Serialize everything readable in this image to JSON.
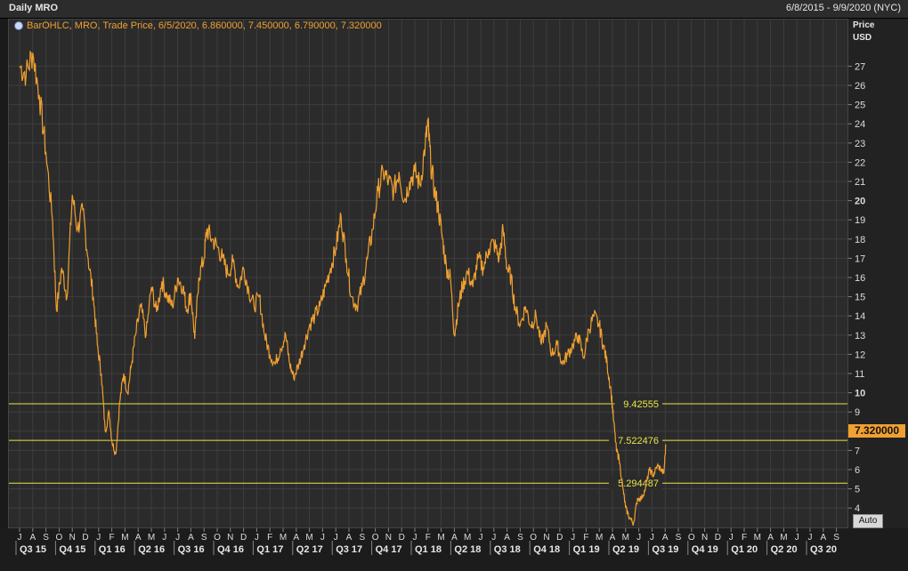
{
  "header": {
    "title": "Daily MRO",
    "range": "6/8/2015 - 9/9/2020 (NYC)"
  },
  "legend": {
    "text": "BarOHLC, MRO, Trade Price, 6/5/2020, 6.860000, 7.450000, 6.790000, 7.320000"
  },
  "axis": {
    "title_line1": "Price",
    "title_line2": "USD",
    "auto_label": "Auto"
  },
  "last_price": "7.320000",
  "colors": {
    "series": "#f0a030",
    "hline": "#e6e64a",
    "grid": "#3e3e3e",
    "background": "#2b2b2b"
  },
  "chart_data": {
    "type": "line",
    "title": "Daily MRO",
    "ylabel": "Price USD",
    "ylim": [
      3,
      28
    ],
    "y_ticks": [
      4,
      5,
      6,
      7,
      8,
      9,
      10,
      11,
      12,
      13,
      14,
      15,
      16,
      17,
      18,
      19,
      20,
      21,
      22,
      23,
      24,
      25,
      26,
      27
    ],
    "bold_ticks": [
      10,
      20
    ],
    "month_labels": [
      "J",
      "A",
      "S",
      "O",
      "N",
      "D",
      "J",
      "F",
      "M",
      "A",
      "M",
      "J",
      "J",
      "A",
      "S",
      "O",
      "N",
      "D",
      "J",
      "F",
      "M",
      "A",
      "M",
      "J",
      "J",
      "A",
      "S",
      "O",
      "N",
      "D",
      "J",
      "F",
      "M",
      "A",
      "M",
      "J",
      "J",
      "A",
      "S",
      "O",
      "N",
      "D",
      "J",
      "F",
      "M",
      "A",
      "M",
      "J",
      "J",
      "A",
      "S",
      "O",
      "N",
      "D",
      "J",
      "F",
      "M",
      "A",
      "M",
      "J",
      "J",
      "A",
      "S"
    ],
    "quarter_labels": [
      "Q3 15",
      "Q4 15",
      "Q1 16",
      "Q2 16",
      "Q3 16",
      "Q4 16",
      "Q1 17",
      "Q2 17",
      "Q3 17",
      "Q4 17",
      "Q1 18",
      "Q2 18",
      "Q3 18",
      "Q4 18",
      "Q1 19",
      "Q2 19",
      "Q3 19",
      "Q4 19",
      "Q1 20",
      "Q2 20",
      "Q3 20"
    ],
    "horizontal_lines": [
      {
        "label": "9.42555",
        "value": 9.42555
      },
      {
        "label": "7.522476",
        "value": 7.522476
      },
      {
        "label": "5.294487",
        "value": 5.294487
      }
    ],
    "series": [
      {
        "points": [
          [
            0,
            27
          ],
          [
            0.5,
            26.6
          ],
          [
            1,
            27.7
          ],
          [
            1.5,
            25.5
          ],
          [
            2,
            22.5
          ],
          [
            2.5,
            19
          ],
          [
            2.8,
            14.3
          ],
          [
            3.2,
            16.5
          ],
          [
            3.6,
            15
          ],
          [
            4,
            20.3
          ],
          [
            4.4,
            18.5
          ],
          [
            4.8,
            19.5
          ],
          [
            5.2,
            17
          ],
          [
            5.6,
            15
          ],
          [
            5.9,
            12.5
          ],
          [
            6.2,
            11
          ],
          [
            6.5,
            8
          ],
          [
            6.8,
            9
          ],
          [
            7,
            7.5
          ],
          [
            7.3,
            6.8
          ],
          [
            7.6,
            9.5
          ],
          [
            7.9,
            11
          ],
          [
            8.2,
            10
          ],
          [
            8.5,
            11.5
          ],
          [
            8.8,
            13
          ],
          [
            9.2,
            14.5
          ],
          [
            9.6,
            13
          ],
          [
            10,
            15.5
          ],
          [
            10.4,
            14.2
          ],
          [
            10.8,
            15.8
          ],
          [
            11.2,
            15
          ],
          [
            11.6,
            14.5
          ],
          [
            12,
            16
          ],
          [
            12.4,
            15.5
          ],
          [
            12.7,
            14.3
          ],
          [
            13,
            15.2
          ],
          [
            13.3,
            12.8
          ],
          [
            13.6,
            16
          ],
          [
            14,
            17
          ],
          [
            14.2,
            18.5
          ],
          [
            14.6,
            18
          ],
          [
            15,
            17.6
          ],
          [
            15.4,
            17
          ],
          [
            15.8,
            16.2
          ],
          [
            16.2,
            16.8
          ],
          [
            16.6,
            15.5
          ],
          [
            17,
            16.5
          ],
          [
            17.4,
            15.3
          ],
          [
            17.8,
            14.5
          ],
          [
            18.2,
            15
          ],
          [
            18.6,
            13
          ],
          [
            19,
            12
          ],
          [
            19.4,
            11.5
          ],
          [
            19.8,
            12.3
          ],
          [
            20.2,
            13
          ],
          [
            20.5,
            11.5
          ],
          [
            20.8,
            10.8
          ],
          [
            21.2,
            11.5
          ],
          [
            21.6,
            12.5
          ],
          [
            22,
            13.5
          ],
          [
            22.4,
            14
          ],
          [
            22.8,
            14.5
          ],
          [
            23.2,
            15.5
          ],
          [
            23.6,
            16.5
          ],
          [
            24,
            17.5
          ],
          [
            24.4,
            19.2
          ],
          [
            24.8,
            17
          ],
          [
            25.2,
            15
          ],
          [
            25.6,
            14.5
          ],
          [
            26,
            15.5
          ],
          [
            26.4,
            17
          ],
          [
            26.8,
            18.5
          ],
          [
            27.2,
            20.5
          ],
          [
            27.6,
            21.5
          ],
          [
            28,
            21
          ],
          [
            28.4,
            20.5
          ],
          [
            28.8,
            21.5
          ],
          [
            29.2,
            20
          ],
          [
            29.6,
            21
          ],
          [
            30,
            21.5
          ],
          [
            30.4,
            20.8
          ],
          [
            30.8,
            23
          ],
          [
            31,
            24
          ],
          [
            31.2,
            22
          ],
          [
            31.5,
            20.5
          ],
          [
            31.8,
            19.5
          ],
          [
            32.1,
            18
          ],
          [
            32.4,
            16.5
          ],
          [
            32.7,
            16
          ],
          [
            33,
            13
          ],
          [
            33.3,
            14.5
          ],
          [
            33.6,
            15.5
          ],
          [
            34,
            16.3
          ],
          [
            34.4,
            15.5
          ],
          [
            34.8,
            17
          ],
          [
            35.2,
            16.5
          ],
          [
            35.6,
            17.5
          ],
          [
            36,
            17.8
          ],
          [
            36.4,
            17
          ],
          [
            36.7,
            18.5
          ],
          [
            37,
            16.5
          ],
          [
            37.3,
            16
          ],
          [
            37.6,
            14.5
          ],
          [
            38,
            13.5
          ],
          [
            38.4,
            14.5
          ],
          [
            38.8,
            13.5
          ],
          [
            39.2,
            14
          ],
          [
            39.6,
            12.5
          ],
          [
            40,
            13.5
          ],
          [
            40.4,
            12
          ],
          [
            40.8,
            12.5
          ],
          [
            41.2,
            11.5
          ],
          [
            41.6,
            12
          ],
          [
            42,
            12.5
          ],
          [
            42.4,
            13
          ],
          [
            42.8,
            11.8
          ],
          [
            43.2,
            13.3
          ],
          [
            43.6,
            14
          ],
          [
            44,
            13.5
          ],
          [
            44.3,
            12.5
          ],
          [
            44.6,
            11.5
          ],
          [
            44.9,
            10
          ],
          [
            45.1,
            8.5
          ],
          [
            45.3,
            7
          ],
          [
            45.5,
            6.6
          ],
          [
            45.8,
            5
          ],
          [
            46,
            4
          ],
          [
            46.3,
            3.5
          ],
          [
            46.6,
            3.2
          ],
          [
            46.9,
            4.5
          ],
          [
            47.2,
            4.5
          ],
          [
            47.5,
            5
          ],
          [
            47.8,
            6
          ],
          [
            48.1,
            5.7
          ],
          [
            48.4,
            6.2
          ],
          [
            48.7,
            6
          ],
          [
            48.9,
            5.8
          ],
          [
            49.05,
            7.32
          ]
        ]
      }
    ]
  }
}
